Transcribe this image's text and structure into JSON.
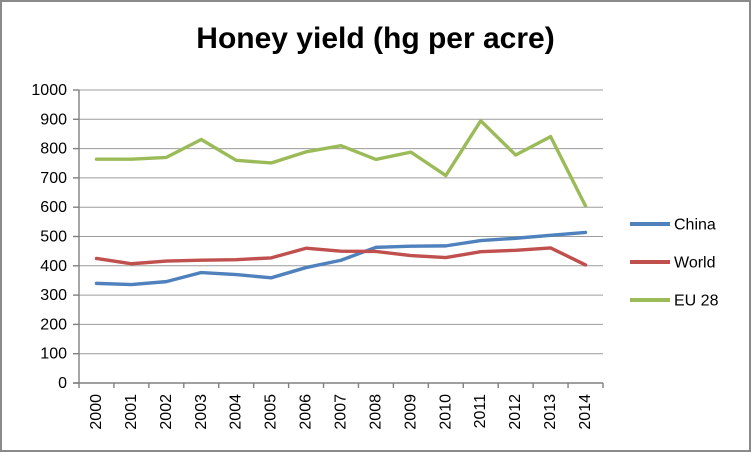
{
  "frame": {
    "background": "#FFFFFF",
    "border_color": "#8A8A8A"
  },
  "chart_data": {
    "type": "line",
    "title": "Honey yield (hg per acre)",
    "xlabel": "",
    "ylabel": "",
    "categories": [
      "2000",
      "2001",
      "2002",
      "2003",
      "2004",
      "2005",
      "2006",
      "2007",
      "2008",
      "2009",
      "2010",
      "2011",
      "2012",
      "2013",
      "2014"
    ],
    "series": [
      {
        "name": "China",
        "color": "#4F81BD",
        "values": [
          340,
          336,
          346,
          377,
          370,
          359,
          394,
          419,
          463,
          467,
          468,
          486,
          494,
          504,
          514
        ]
      },
      {
        "name": "World",
        "color": "#C0504D",
        "values": [
          425,
          407,
          416,
          419,
          421,
          427,
          460,
          450,
          449,
          435,
          428,
          448,
          453,
          461,
          403
        ]
      },
      {
        "name": "EU 28",
        "color": "#9BBB59",
        "values": [
          764,
          764,
          770,
          831,
          760,
          751,
          789,
          810,
          763,
          788,
          708,
          895,
          778,
          841,
          604
        ]
      }
    ],
    "ylim": [
      0,
      1000
    ],
    "ytick_step": 100,
    "grid": true,
    "legend_position": "right",
    "colors": {
      "gridline": "#9C9C9C",
      "axis": "#808080",
      "tick": "#808080",
      "text": "#000000"
    }
  }
}
